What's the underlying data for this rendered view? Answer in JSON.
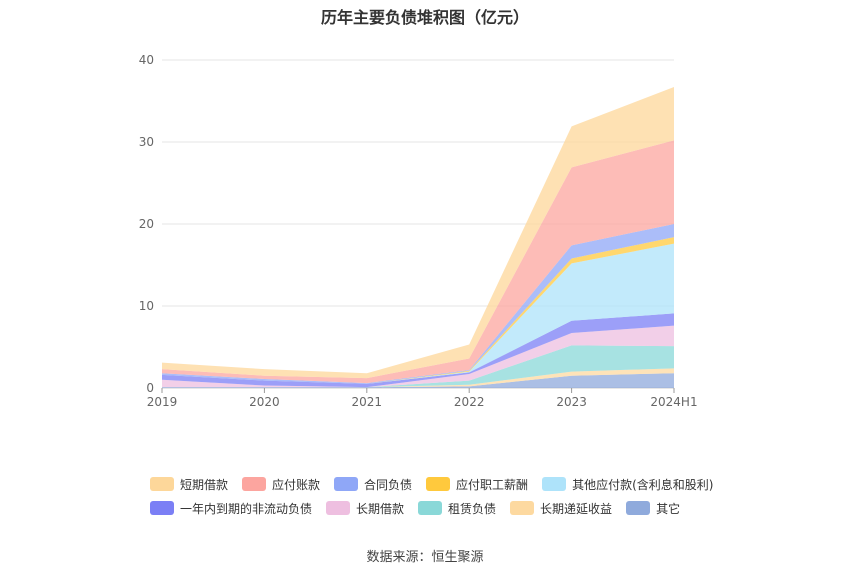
{
  "chart_data": {
    "type": "area",
    "stacked": true,
    "title": "历年主要负债堆积图（亿元）",
    "categories": [
      "2019",
      "2020",
      "2021",
      "2022",
      "2023",
      "2024H1"
    ],
    "ylim": [
      0,
      40
    ],
    "yticks": [
      0,
      10,
      20,
      30,
      40
    ],
    "grid": true,
    "legend_position": "bottom",
    "series": [
      {
        "name": "其它",
        "color": "#8faadc",
        "values": [
          0.1,
          0.1,
          0.1,
          0.2,
          1.5,
          1.8
        ]
      },
      {
        "name": "长期递延收益",
        "color": "#fdd9a0",
        "values": [
          0.0,
          0.0,
          0.0,
          0.2,
          0.5,
          0.6
        ]
      },
      {
        "name": "租赁负债",
        "color": "#8ad8d8",
        "values": [
          0.0,
          0.0,
          0.0,
          0.5,
          3.2,
          2.7
        ]
      },
      {
        "name": "长期借款",
        "color": "#eebfe0",
        "values": [
          0.9,
          0.2,
          0.0,
          0.8,
          1.5,
          2.5
        ]
      },
      {
        "name": "一年内到期的非流动负债",
        "color": "#7b7ff5",
        "values": [
          0.6,
          0.6,
          0.4,
          0.2,
          1.5,
          1.5
        ]
      },
      {
        "name": "其他应付款(含利息和股利)",
        "color": "#aee3fa",
        "values": [
          0.0,
          0.0,
          0.0,
          0.1,
          7.0,
          8.5
        ]
      },
      {
        "name": "应付职工薪酬",
        "color": "#ffc93d",
        "values": [
          0.0,
          0.0,
          0.0,
          0.1,
          0.6,
          0.8
        ]
      },
      {
        "name": "合同负债",
        "color": "#8fa7f7",
        "values": [
          0.2,
          0.2,
          0.1,
          0.1,
          1.6,
          1.6
        ]
      },
      {
        "name": "应付账款",
        "color": "#fca59f",
        "values": [
          0.5,
          0.4,
          0.6,
          1.4,
          9.5,
          10.2
        ]
      },
      {
        "name": "短期借款",
        "color": "#fdd79a",
        "values": [
          0.8,
          0.8,
          0.6,
          1.7,
          5.0,
          6.5
        ]
      }
    ]
  },
  "legend": {
    "rows": [
      [
        {
          "name": "短期借款",
          "color": "#fdd79a"
        },
        {
          "name": "应付账款",
          "color": "#fca59f"
        },
        {
          "name": "合同负债",
          "color": "#8fa7f7"
        },
        {
          "name": "应付职工薪酬",
          "color": "#ffc93d"
        },
        {
          "name": "其他应付款(含利息和股利)",
          "color": "#aee3fa"
        }
      ],
      [
        {
          "name": "一年内到期的非流动负债",
          "color": "#7b7ff5"
        },
        {
          "name": "长期借款",
          "color": "#eebfe0"
        },
        {
          "name": "租赁负债",
          "color": "#8ad8d8"
        },
        {
          "name": "长期递延收益",
          "color": "#fdd9a0"
        },
        {
          "name": "其它",
          "color": "#8faadc"
        }
      ]
    ]
  },
  "source": "数据来源：恒生聚源"
}
